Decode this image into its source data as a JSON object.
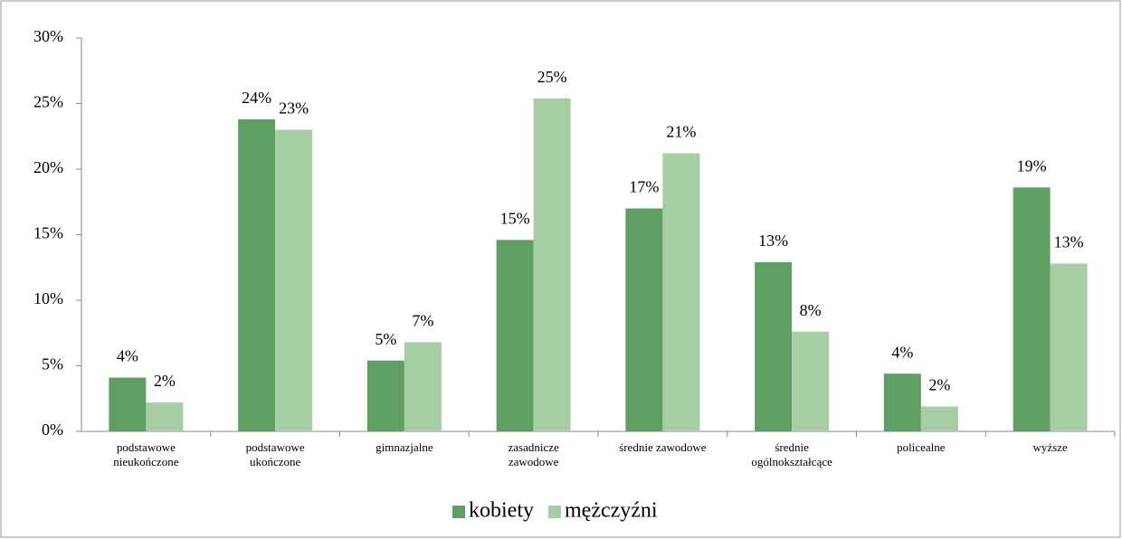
{
  "chart_data": {
    "type": "bar",
    "categories": [
      "podstawowe\nnieukończone",
      "podstawowe\nukończone",
      "gimnazjalne",
      "zasadnicze\nzawodowe",
      "średnie zawodowe",
      "średnie\nogólnokształcące",
      "policealne",
      "wyższe"
    ],
    "series": [
      {
        "name": "kobiety",
        "color": "#5f9f63",
        "values": [
          4.1,
          23.8,
          5.4,
          14.6,
          17.0,
          12.9,
          4.4,
          18.6
        ],
        "value_labels": [
          "4%",
          "24%",
          "5%",
          "15%",
          "17%",
          "13%",
          "4%",
          "19%"
        ]
      },
      {
        "name": "mężczyźni",
        "color": "#a6cda3",
        "values": [
          2.2,
          23.0,
          6.8,
          25.4,
          21.2,
          7.6,
          1.9,
          12.8
        ],
        "value_labels": [
          "2%",
          "23%",
          "7%",
          "25%",
          "21%",
          "8%",
          "2%",
          "13%"
        ]
      }
    ],
    "ylim": [
      0,
      30
    ],
    "yticks": [
      {
        "value": 0,
        "label": "0%"
      },
      {
        "value": 5,
        "label": "5%"
      },
      {
        "value": 10,
        "label": "10%"
      },
      {
        "value": 15,
        "label": "15%"
      },
      {
        "value": 20,
        "label": "20%"
      },
      {
        "value": 25,
        "label": "25%"
      },
      {
        "value": 30,
        "label": "30%"
      }
    ],
    "grid": false,
    "legend": "bottom"
  }
}
